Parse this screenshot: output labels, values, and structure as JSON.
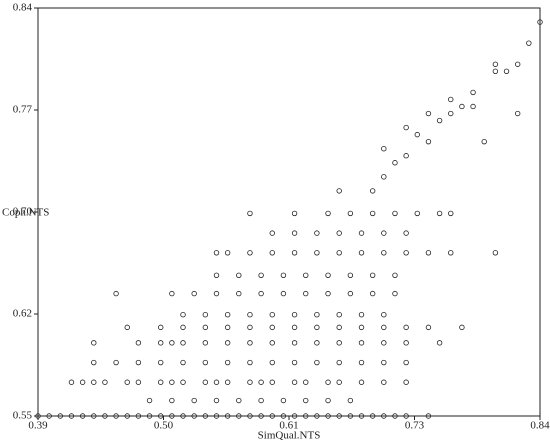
{
  "chart_data": {
    "type": "scatter",
    "x_label": "SimQual.NTS",
    "y_label": "Coph.NTS",
    "xlim": [
      0.39,
      0.84
    ],
    "ylim": [
      0.55,
      0.84
    ],
    "xticks": [
      0.39,
      {
        "value": 0.5025,
        "label": "0.50"
      },
      {
        "value": 0.615,
        "label": "0.61"
      },
      {
        "value": 0.7275,
        "label": "0.73"
      },
      0.84
    ],
    "yticks": [
      0.55,
      {
        "value": 0.6225,
        "label": "0.62"
      },
      {
        "value": 0.695,
        "label": "0.70"
      },
      {
        "value": 0.7675,
        "label": "0.77"
      },
      0.84
    ],
    "color": "#222222",
    "points": [
      [
        0.39,
        0.55
      ],
      [
        0.4,
        0.55
      ],
      [
        0.41,
        0.55
      ],
      [
        0.42,
        0.55
      ],
      [
        0.43,
        0.55
      ],
      [
        0.44,
        0.55
      ],
      [
        0.45,
        0.55
      ],
      [
        0.46,
        0.55
      ],
      [
        0.47,
        0.55
      ],
      [
        0.48,
        0.55
      ],
      [
        0.49,
        0.55
      ],
      [
        0.5,
        0.55
      ],
      [
        0.51,
        0.55
      ],
      [
        0.52,
        0.55
      ],
      [
        0.53,
        0.55
      ],
      [
        0.54,
        0.55
      ],
      [
        0.55,
        0.55
      ],
      [
        0.56,
        0.55
      ],
      [
        0.57,
        0.55
      ],
      [
        0.58,
        0.55
      ],
      [
        0.59,
        0.55
      ],
      [
        0.6,
        0.55
      ],
      [
        0.61,
        0.55
      ],
      [
        0.62,
        0.55
      ],
      [
        0.63,
        0.55
      ],
      [
        0.64,
        0.55
      ],
      [
        0.65,
        0.55
      ],
      [
        0.66,
        0.55
      ],
      [
        0.67,
        0.55
      ],
      [
        0.68,
        0.55
      ],
      [
        0.69,
        0.55
      ],
      [
        0.7,
        0.55
      ],
      [
        0.71,
        0.55
      ],
      [
        0.72,
        0.55
      ],
      [
        0.74,
        0.55
      ],
      [
        0.49,
        0.561
      ],
      [
        0.51,
        0.561
      ],
      [
        0.53,
        0.561
      ],
      [
        0.55,
        0.561
      ],
      [
        0.57,
        0.561
      ],
      [
        0.59,
        0.561
      ],
      [
        0.61,
        0.561
      ],
      [
        0.63,
        0.561
      ],
      [
        0.65,
        0.561
      ],
      [
        0.67,
        0.561
      ],
      [
        0.42,
        0.574
      ],
      [
        0.43,
        0.574
      ],
      [
        0.44,
        0.574
      ],
      [
        0.45,
        0.574
      ],
      [
        0.47,
        0.574
      ],
      [
        0.48,
        0.574
      ],
      [
        0.5,
        0.574
      ],
      [
        0.51,
        0.574
      ],
      [
        0.52,
        0.574
      ],
      [
        0.54,
        0.574
      ],
      [
        0.55,
        0.574
      ],
      [
        0.56,
        0.574
      ],
      [
        0.58,
        0.574
      ],
      [
        0.59,
        0.574
      ],
      [
        0.6,
        0.574
      ],
      [
        0.62,
        0.574
      ],
      [
        0.63,
        0.574
      ],
      [
        0.65,
        0.574
      ],
      [
        0.66,
        0.574
      ],
      [
        0.68,
        0.574
      ],
      [
        0.7,
        0.574
      ],
      [
        0.72,
        0.574
      ],
      [
        0.44,
        0.588
      ],
      [
        0.46,
        0.588
      ],
      [
        0.48,
        0.588
      ],
      [
        0.5,
        0.588
      ],
      [
        0.52,
        0.588
      ],
      [
        0.54,
        0.588
      ],
      [
        0.56,
        0.588
      ],
      [
        0.58,
        0.588
      ],
      [
        0.6,
        0.588
      ],
      [
        0.62,
        0.588
      ],
      [
        0.64,
        0.588
      ],
      [
        0.66,
        0.588
      ],
      [
        0.68,
        0.588
      ],
      [
        0.7,
        0.588
      ],
      [
        0.72,
        0.588
      ],
      [
        0.44,
        0.602
      ],
      [
        0.48,
        0.602
      ],
      [
        0.5,
        0.602
      ],
      [
        0.51,
        0.602
      ],
      [
        0.52,
        0.602
      ],
      [
        0.54,
        0.602
      ],
      [
        0.56,
        0.602
      ],
      [
        0.58,
        0.602
      ],
      [
        0.6,
        0.602
      ],
      [
        0.62,
        0.602
      ],
      [
        0.64,
        0.602
      ],
      [
        0.66,
        0.602
      ],
      [
        0.68,
        0.602
      ],
      [
        0.7,
        0.602
      ],
      [
        0.72,
        0.602
      ],
      [
        0.75,
        0.602
      ],
      [
        0.47,
        0.613
      ],
      [
        0.5,
        0.613
      ],
      [
        0.52,
        0.613
      ],
      [
        0.54,
        0.613
      ],
      [
        0.56,
        0.613
      ],
      [
        0.58,
        0.613
      ],
      [
        0.6,
        0.613
      ],
      [
        0.62,
        0.613
      ],
      [
        0.64,
        0.613
      ],
      [
        0.66,
        0.613
      ],
      [
        0.68,
        0.613
      ],
      [
        0.7,
        0.613
      ],
      [
        0.72,
        0.613
      ],
      [
        0.74,
        0.613
      ],
      [
        0.77,
        0.613
      ],
      [
        0.52,
        0.622
      ],
      [
        0.54,
        0.622
      ],
      [
        0.56,
        0.622
      ],
      [
        0.58,
        0.622
      ],
      [
        0.6,
        0.622
      ],
      [
        0.62,
        0.622
      ],
      [
        0.64,
        0.622
      ],
      [
        0.66,
        0.622
      ],
      [
        0.68,
        0.622
      ],
      [
        0.7,
        0.622
      ],
      [
        0.46,
        0.637
      ],
      [
        0.51,
        0.637
      ],
      [
        0.53,
        0.637
      ],
      [
        0.55,
        0.637
      ],
      [
        0.57,
        0.637
      ],
      [
        0.59,
        0.637
      ],
      [
        0.61,
        0.637
      ],
      [
        0.63,
        0.637
      ],
      [
        0.65,
        0.637
      ],
      [
        0.67,
        0.637
      ],
      [
        0.69,
        0.637
      ],
      [
        0.71,
        0.637
      ],
      [
        0.55,
        0.65
      ],
      [
        0.57,
        0.65
      ],
      [
        0.59,
        0.65
      ],
      [
        0.61,
        0.65
      ],
      [
        0.63,
        0.65
      ],
      [
        0.65,
        0.65
      ],
      [
        0.67,
        0.65
      ],
      [
        0.69,
        0.65
      ],
      [
        0.71,
        0.65
      ],
      [
        0.55,
        0.666
      ],
      [
        0.56,
        0.666
      ],
      [
        0.58,
        0.666
      ],
      [
        0.6,
        0.666
      ],
      [
        0.62,
        0.666
      ],
      [
        0.64,
        0.666
      ],
      [
        0.66,
        0.666
      ],
      [
        0.68,
        0.666
      ],
      [
        0.7,
        0.666
      ],
      [
        0.72,
        0.666
      ],
      [
        0.74,
        0.666
      ],
      [
        0.76,
        0.666
      ],
      [
        0.8,
        0.666
      ],
      [
        0.6,
        0.68
      ],
      [
        0.62,
        0.68
      ],
      [
        0.64,
        0.68
      ],
      [
        0.66,
        0.68
      ],
      [
        0.68,
        0.68
      ],
      [
        0.7,
        0.68
      ],
      [
        0.72,
        0.68
      ],
      [
        0.58,
        0.694
      ],
      [
        0.62,
        0.694
      ],
      [
        0.65,
        0.694
      ],
      [
        0.67,
        0.694
      ],
      [
        0.69,
        0.694
      ],
      [
        0.71,
        0.694
      ],
      [
        0.73,
        0.694
      ],
      [
        0.75,
        0.694
      ],
      [
        0.76,
        0.694
      ],
      [
        0.66,
        0.71
      ],
      [
        0.69,
        0.71
      ],
      [
        0.7,
        0.72
      ],
      [
        0.71,
        0.73
      ],
      [
        0.72,
        0.735
      ],
      [
        0.73,
        0.75
      ],
      [
        0.74,
        0.745
      ],
      [
        0.75,
        0.76
      ],
      [
        0.76,
        0.765
      ],
      [
        0.77,
        0.77
      ],
      [
        0.7,
        0.74
      ],
      [
        0.72,
        0.755
      ],
      [
        0.74,
        0.765
      ],
      [
        0.76,
        0.775
      ],
      [
        0.78,
        0.78
      ],
      [
        0.8,
        0.795
      ],
      [
        0.8,
        0.8
      ],
      [
        0.81,
        0.795
      ],
      [
        0.82,
        0.8
      ],
      [
        0.83,
        0.815
      ],
      [
        0.84,
        0.83
      ],
      [
        0.79,
        0.745
      ],
      [
        0.82,
        0.765
      ],
      [
        0.78,
        0.77
      ]
    ]
  }
}
